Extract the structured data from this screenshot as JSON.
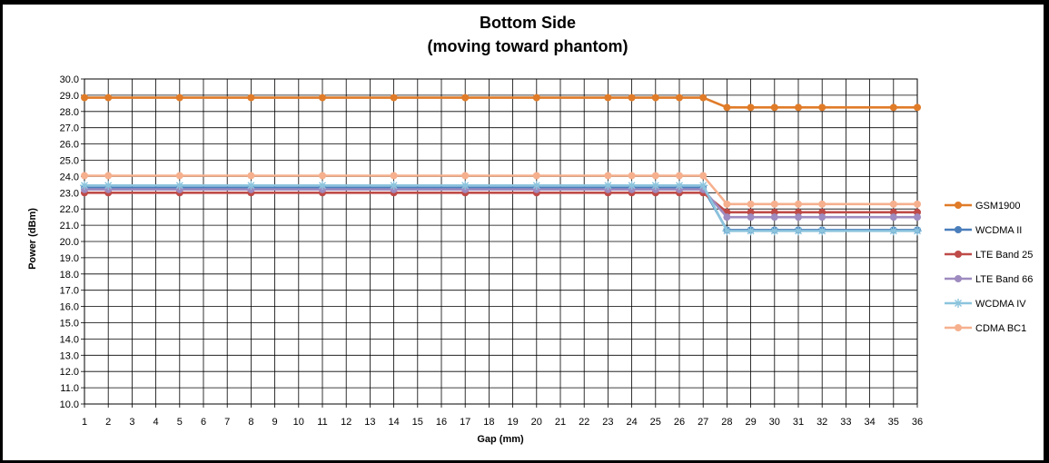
{
  "chart_data": {
    "type": "line",
    "title": [
      "Bottom Side",
      "(moving toward phantom)"
    ],
    "xlabel": "Gap (mm)",
    "ylabel": "Power (dBm)",
    "ylim": [
      10,
      30
    ],
    "y_ticks": [
      "10.0",
      "11.0",
      "12.0",
      "13.0",
      "14.0",
      "15.0",
      "16.0",
      "17.0",
      "18.0",
      "19.0",
      "20.0",
      "21.0",
      "22.0",
      "23.0",
      "24.0",
      "25.0",
      "26.0",
      "27.0",
      "28.0",
      "29.0",
      "30.0"
    ],
    "categories": [
      "1",
      "2",
      "3",
      "4",
      "5",
      "6",
      "7",
      "8",
      "9",
      "10",
      "11",
      "12",
      "13",
      "14",
      "15",
      "16",
      "17",
      "18",
      "19",
      "20",
      "21",
      "22",
      "23",
      "24",
      "25",
      "26",
      "27",
      "28",
      "29",
      "30",
      "31",
      "32",
      "33",
      "34",
      "35",
      "36"
    ],
    "grid": true,
    "legend_position": "right",
    "series": [
      {
        "name": "GSM1900",
        "color": "#E07B28",
        "marker": "circle",
        "points": [
          [
            1,
            28.85
          ],
          [
            2,
            28.85
          ],
          [
            5,
            28.85
          ],
          [
            8,
            28.85
          ],
          [
            11,
            28.85
          ],
          [
            14,
            28.85
          ],
          [
            17,
            28.85
          ],
          [
            20,
            28.85
          ],
          [
            23,
            28.85
          ],
          [
            24,
            28.85
          ],
          [
            25,
            28.85
          ],
          [
            26,
            28.85
          ],
          [
            27,
            28.85
          ],
          [
            28,
            28.25
          ],
          [
            29,
            28.25
          ],
          [
            30,
            28.25
          ],
          [
            31,
            28.25
          ],
          [
            32,
            28.25
          ],
          [
            35,
            28.25
          ],
          [
            36,
            28.25
          ]
        ]
      },
      {
        "name": "WCDMA II",
        "color": "#4A7EBB",
        "marker": "circle",
        "points": [
          [
            1,
            23.3
          ],
          [
            2,
            23.3
          ],
          [
            5,
            23.3
          ],
          [
            8,
            23.3
          ],
          [
            11,
            23.3
          ],
          [
            14,
            23.3
          ],
          [
            17,
            23.3
          ],
          [
            20,
            23.3
          ],
          [
            23,
            23.3
          ],
          [
            24,
            23.3
          ],
          [
            25,
            23.3
          ],
          [
            26,
            23.3
          ],
          [
            27,
            23.3
          ],
          [
            28,
            20.7
          ],
          [
            29,
            20.7
          ],
          [
            30,
            20.7
          ],
          [
            31,
            20.7
          ],
          [
            32,
            20.7
          ],
          [
            35,
            20.7
          ],
          [
            36,
            20.7
          ]
        ]
      },
      {
        "name": "LTE Band 25",
        "color": "#BE4B48",
        "marker": "circle",
        "points": [
          [
            1,
            23.0
          ],
          [
            2,
            23.0
          ],
          [
            5,
            23.0
          ],
          [
            8,
            23.0
          ],
          [
            11,
            23.0
          ],
          [
            14,
            23.0
          ],
          [
            17,
            23.0
          ],
          [
            20,
            23.0
          ],
          [
            23,
            23.0
          ],
          [
            24,
            23.0
          ],
          [
            25,
            23.0
          ],
          [
            26,
            23.0
          ],
          [
            27,
            23.0
          ],
          [
            28,
            21.8
          ],
          [
            29,
            21.8
          ],
          [
            30,
            21.8
          ],
          [
            31,
            21.8
          ],
          [
            32,
            21.8
          ],
          [
            35,
            21.8
          ],
          [
            36,
            21.8
          ]
        ]
      },
      {
        "name": "LTE Band 66",
        "color": "#9E8BBF",
        "marker": "circle",
        "points": [
          [
            1,
            23.2
          ],
          [
            2,
            23.2
          ],
          [
            5,
            23.2
          ],
          [
            8,
            23.2
          ],
          [
            11,
            23.2
          ],
          [
            14,
            23.2
          ],
          [
            17,
            23.2
          ],
          [
            20,
            23.2
          ],
          [
            23,
            23.2
          ],
          [
            24,
            23.2
          ],
          [
            25,
            23.2
          ],
          [
            26,
            23.2
          ],
          [
            27,
            23.2
          ],
          [
            28,
            21.5
          ],
          [
            29,
            21.5
          ],
          [
            30,
            21.5
          ],
          [
            31,
            21.5
          ],
          [
            32,
            21.5
          ],
          [
            35,
            21.5
          ],
          [
            36,
            21.5
          ]
        ]
      },
      {
        "name": "WCDMA IV",
        "color": "#8CC4DD",
        "marker": "star",
        "points": [
          [
            1,
            23.45
          ],
          [
            2,
            23.45
          ],
          [
            5,
            23.45
          ],
          [
            8,
            23.45
          ],
          [
            11,
            23.45
          ],
          [
            14,
            23.45
          ],
          [
            17,
            23.45
          ],
          [
            20,
            23.45
          ],
          [
            23,
            23.45
          ],
          [
            24,
            23.45
          ],
          [
            25,
            23.45
          ],
          [
            26,
            23.45
          ],
          [
            27,
            23.45
          ],
          [
            28,
            20.65
          ],
          [
            29,
            20.65
          ],
          [
            30,
            20.65
          ],
          [
            31,
            20.65
          ],
          [
            32,
            20.65
          ],
          [
            35,
            20.65
          ],
          [
            36,
            20.65
          ]
        ]
      },
      {
        "name": "CDMA BC1",
        "color": "#F6B08E",
        "marker": "circle",
        "points": [
          [
            1,
            24.05
          ],
          [
            2,
            24.05
          ],
          [
            5,
            24.05
          ],
          [
            8,
            24.05
          ],
          [
            11,
            24.05
          ],
          [
            14,
            24.05
          ],
          [
            17,
            24.05
          ],
          [
            20,
            24.05
          ],
          [
            23,
            24.05
          ],
          [
            24,
            24.05
          ],
          [
            25,
            24.05
          ],
          [
            26,
            24.05
          ],
          [
            27,
            24.05
          ],
          [
            28,
            22.3
          ],
          [
            29,
            22.3
          ],
          [
            30,
            22.3
          ],
          [
            31,
            22.3
          ],
          [
            32,
            22.3
          ],
          [
            35,
            22.3
          ],
          [
            36,
            22.3
          ]
        ]
      }
    ]
  }
}
